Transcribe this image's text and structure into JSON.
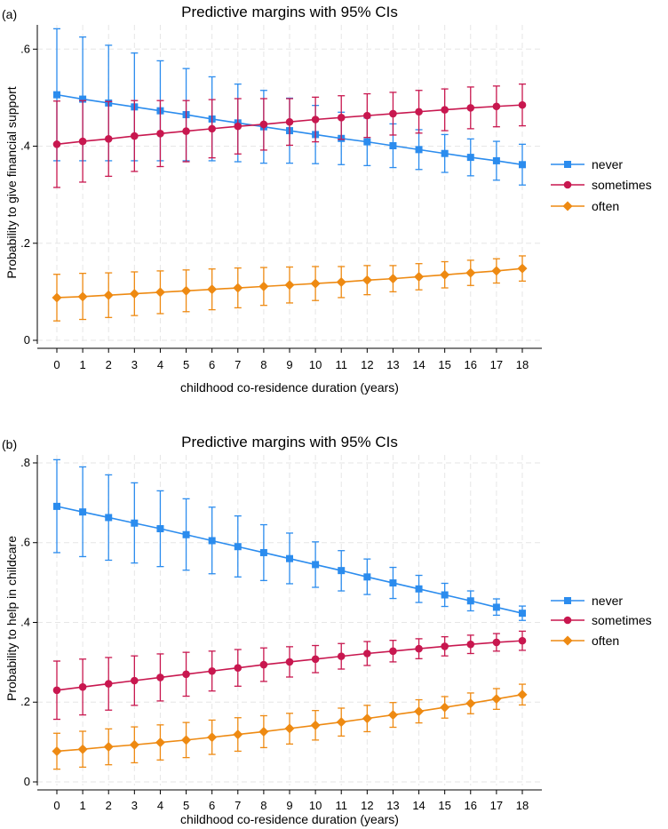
{
  "chart_data": [
    {
      "panel": "(a)",
      "type": "line",
      "title": "Predictive margins with 95% CIs",
      "xlabel": "childhood co-residence duration (years)",
      "ylabel": "Probability to give financial support",
      "x": [
        0,
        1,
        2,
        3,
        4,
        5,
        6,
        7,
        8,
        9,
        10,
        11,
        12,
        13,
        14,
        15,
        16,
        17,
        18
      ],
      "yticks": [
        0,
        0.2,
        0.4,
        0.6
      ],
      "ytick_labels": [
        "0",
        ".2",
        ".4",
        ".6"
      ],
      "ylim": [
        0,
        0.65
      ],
      "series": [
        {
          "name": "never",
          "color": "#2b8cee",
          "marker": "square",
          "values": [
            0.506,
            0.497,
            0.489,
            0.481,
            0.473,
            0.465,
            0.456,
            0.448,
            0.44,
            0.432,
            0.424,
            0.416,
            0.409,
            0.401,
            0.393,
            0.385,
            0.377,
            0.37,
            0.362
          ],
          "lower": [
            0.37,
            0.37,
            0.37,
            0.37,
            0.37,
            0.37,
            0.37,
            0.368,
            0.365,
            0.365,
            0.364,
            0.362,
            0.36,
            0.356,
            0.352,
            0.346,
            0.339,
            0.33,
            0.32
          ],
          "upper": [
            0.642,
            0.625,
            0.608,
            0.592,
            0.576,
            0.56,
            0.543,
            0.528,
            0.515,
            0.499,
            0.484,
            0.47,
            0.458,
            0.446,
            0.434,
            0.424,
            0.415,
            0.41,
            0.404
          ]
        },
        {
          "name": "sometimes",
          "color": "#c8174f",
          "marker": "circle",
          "values": [
            0.404,
            0.41,
            0.415,
            0.421,
            0.426,
            0.431,
            0.436,
            0.441,
            0.445,
            0.45,
            0.455,
            0.459,
            0.463,
            0.467,
            0.471,
            0.475,
            0.479,
            0.482,
            0.485
          ],
          "lower": [
            0.315,
            0.326,
            0.338,
            0.348,
            0.358,
            0.368,
            0.376,
            0.384,
            0.392,
            0.402,
            0.409,
            0.414,
            0.418,
            0.423,
            0.427,
            0.432,
            0.436,
            0.44,
            0.442
          ],
          "upper": [
            0.493,
            0.494,
            0.492,
            0.494,
            0.494,
            0.494,
            0.496,
            0.498,
            0.498,
            0.498,
            0.501,
            0.504,
            0.508,
            0.511,
            0.515,
            0.518,
            0.522,
            0.524,
            0.528
          ]
        },
        {
          "name": "often",
          "color": "#ee8a12",
          "marker": "diamond",
          "values": [
            0.088,
            0.09,
            0.093,
            0.096,
            0.099,
            0.102,
            0.105,
            0.108,
            0.111,
            0.114,
            0.117,
            0.12,
            0.124,
            0.127,
            0.131,
            0.135,
            0.139,
            0.143,
            0.148
          ],
          "lower": [
            0.04,
            0.043,
            0.047,
            0.051,
            0.055,
            0.059,
            0.063,
            0.067,
            0.072,
            0.077,
            0.082,
            0.088,
            0.094,
            0.1,
            0.104,
            0.108,
            0.113,
            0.118,
            0.122
          ],
          "upper": [
            0.136,
            0.138,
            0.139,
            0.141,
            0.143,
            0.145,
            0.147,
            0.149,
            0.15,
            0.151,
            0.152,
            0.152,
            0.154,
            0.154,
            0.158,
            0.162,
            0.165,
            0.168,
            0.174
          ]
        }
      ]
    },
    {
      "panel": "(b)",
      "type": "line",
      "title": "Predictive margins with 95% CIs",
      "xlabel": "childhood co-residence duration (years)",
      "ylabel": "Probability to help in childcare",
      "x": [
        0,
        1,
        2,
        3,
        4,
        5,
        6,
        7,
        8,
        9,
        10,
        11,
        12,
        13,
        14,
        15,
        16,
        17,
        18
      ],
      "yticks": [
        0,
        0.2,
        0.4,
        0.6,
        0.8
      ],
      "ytick_labels": [
        "0",
        ".2",
        ".4",
        ".6",
        ".8"
      ],
      "ylim": [
        0,
        0.82
      ],
      "series": [
        {
          "name": "never",
          "color": "#2b8cee",
          "marker": "square",
          "values": [
            0.691,
            0.677,
            0.663,
            0.649,
            0.635,
            0.62,
            0.605,
            0.59,
            0.575,
            0.56,
            0.545,
            0.53,
            0.514,
            0.499,
            0.484,
            0.469,
            0.454,
            0.438,
            0.423
          ],
          "lower": [
            0.575,
            0.565,
            0.556,
            0.549,
            0.54,
            0.531,
            0.522,
            0.514,
            0.505,
            0.497,
            0.488,
            0.479,
            0.47,
            0.46,
            0.45,
            0.44,
            0.429,
            0.418,
            0.405
          ],
          "upper": [
            0.808,
            0.79,
            0.77,
            0.75,
            0.73,
            0.71,
            0.689,
            0.667,
            0.645,
            0.624,
            0.602,
            0.58,
            0.559,
            0.538,
            0.518,
            0.498,
            0.479,
            0.459,
            0.441
          ]
        },
        {
          "name": "sometimes",
          "color": "#c8174f",
          "marker": "circle",
          "values": [
            0.23,
            0.238,
            0.246,
            0.254,
            0.262,
            0.27,
            0.278,
            0.286,
            0.294,
            0.301,
            0.308,
            0.315,
            0.322,
            0.328,
            0.334,
            0.34,
            0.345,
            0.35,
            0.354
          ],
          "lower": [
            0.157,
            0.168,
            0.18,
            0.192,
            0.203,
            0.215,
            0.228,
            0.24,
            0.252,
            0.263,
            0.274,
            0.283,
            0.292,
            0.301,
            0.309,
            0.316,
            0.322,
            0.328,
            0.33
          ],
          "upper": [
            0.303,
            0.308,
            0.312,
            0.316,
            0.321,
            0.325,
            0.328,
            0.332,
            0.336,
            0.339,
            0.342,
            0.347,
            0.352,
            0.355,
            0.359,
            0.364,
            0.368,
            0.372,
            0.378
          ]
        },
        {
          "name": "often",
          "color": "#ee8a12",
          "marker": "diamond",
          "values": [
            0.077,
            0.082,
            0.088,
            0.093,
            0.099,
            0.105,
            0.112,
            0.119,
            0.126,
            0.134,
            0.142,
            0.15,
            0.159,
            0.168,
            0.177,
            0.187,
            0.197,
            0.208,
            0.219
          ],
          "lower": [
            0.032,
            0.037,
            0.043,
            0.048,
            0.055,
            0.061,
            0.069,
            0.077,
            0.086,
            0.095,
            0.105,
            0.115,
            0.126,
            0.137,
            0.148,
            0.16,
            0.171,
            0.182,
            0.193
          ],
          "upper": [
            0.122,
            0.127,
            0.133,
            0.138,
            0.143,
            0.149,
            0.155,
            0.161,
            0.166,
            0.172,
            0.179,
            0.185,
            0.192,
            0.199,
            0.206,
            0.214,
            0.223,
            0.234,
            0.245
          ]
        }
      ]
    }
  ]
}
